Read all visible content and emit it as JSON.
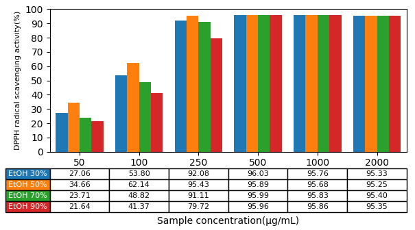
{
  "chart_data": {
    "type": "bar",
    "categories": [
      "50",
      "100",
      "250",
      "500",
      "1000",
      "2000"
    ],
    "series": [
      {
        "name": "EtOH 30%",
        "values": [
          27.06,
          53.8,
          92.08,
          96.03,
          95.76,
          95.33
        ],
        "value_labels": [
          "27.06",
          "53.80",
          "92.08",
          "96.03",
          "95.76",
          "95.33"
        ]
      },
      {
        "name": "EtOH 50%",
        "values": [
          34.66,
          62.14,
          95.43,
          95.89,
          95.68,
          95.25
        ],
        "value_labels": [
          "34.66",
          "62.14",
          "95.43",
          "95.89",
          "95.68",
          "95.25"
        ]
      },
      {
        "name": "EtOH 70%",
        "values": [
          23.71,
          48.82,
          91.11,
          95.99,
          95.83,
          95.4
        ],
        "value_labels": [
          "23.71",
          "48.82",
          "91.11",
          "95.99",
          "95.83",
          "95.40"
        ]
      },
      {
        "name": "EtOH 90%",
        "values": [
          21.64,
          41.37,
          79.72,
          95.96,
          95.86,
          95.35
        ],
        "value_labels": [
          "21.64",
          "41.37",
          "79.72",
          "95.96",
          "95.86",
          "95.35"
        ]
      }
    ],
    "ylabel": "DPPH radical scavenging activity(%)",
    "xlabel": "Sample concentration(μg/mL)",
    "ylim": [
      0,
      100
    ],
    "yticks": [
      0,
      10,
      20,
      30,
      40,
      50,
      60,
      70,
      80,
      90,
      100
    ],
    "data_labels": true
  }
}
